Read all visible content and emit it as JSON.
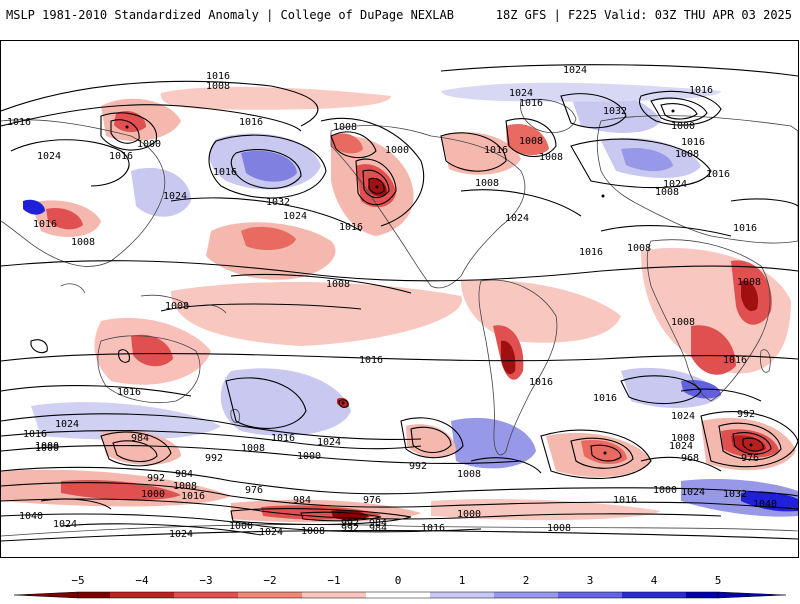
{
  "header": {
    "title": "MSLP 1981-2010 Standardized Anomaly | College of DuPage NEXLAB",
    "run_info": "18Z GFS | F225 Valid: 03Z THU APR 03 2025"
  },
  "map": {
    "isobar_labels": [
      "1016",
      "1008",
      "1016",
      "1024",
      "1016",
      "1000",
      "1016",
      "1024",
      "1016",
      "1032",
      "1016",
      "1024",
      "1008",
      "1008",
      "1016",
      "1000",
      "1008",
      "1024",
      "1016",
      "1024",
      "1032",
      "1008",
      "1008",
      "1016",
      "1024",
      "1016",
      "1008",
      "1016",
      "1000",
      "1016",
      "1008",
      "1024",
      "1008",
      "1016",
      "1008",
      "1016",
      "1008",
      "1008",
      "1008",
      "1016",
      "1016",
      "1016",
      "1016",
      "1024",
      "1016",
      "1024",
      "1000",
      "984",
      "1008",
      "1016",
      "1024",
      "992",
      "1000",
      "992",
      "1008",
      "992",
      "984",
      "1000",
      "992",
      "984",
      "1008",
      "976",
      "1016",
      "984",
      "976",
      "1000",
      "1024",
      "1008",
      "992",
      "984",
      "1016",
      "1000",
      "1008",
      "1024",
      "992",
      "968",
      "976",
      "1000",
      "1024",
      "1032",
      "1040",
      "1040",
      "1024",
      "1000",
      "1016",
      "1024",
      "1008",
      "1016"
    ],
    "anomaly_colors": {
      "neg5": "#8b0000",
      "neg4": "#c81e1e",
      "neg3": "#e05050",
      "neg2": "#f08a80",
      "neg1": "#f8c8c0",
      "pos1": "#c8c8f0",
      "pos2": "#9898e8",
      "pos3": "#6060e0",
      "pos4": "#2020d8",
      "pos5": "#0000b0"
    }
  },
  "colorbar": {
    "ticks": [
      "−5",
      "−4",
      "−3",
      "−2",
      "−1",
      "0",
      "1",
      "2",
      "3",
      "4",
      "5"
    ],
    "colors": [
      "#7a0000",
      "#c02020",
      "#e05050",
      "#f08878",
      "#f8c4bc",
      "#ffffff",
      "#c8c8f4",
      "#9898ec",
      "#6464e4",
      "#2a2ad8",
      "#0000b0"
    ]
  }
}
